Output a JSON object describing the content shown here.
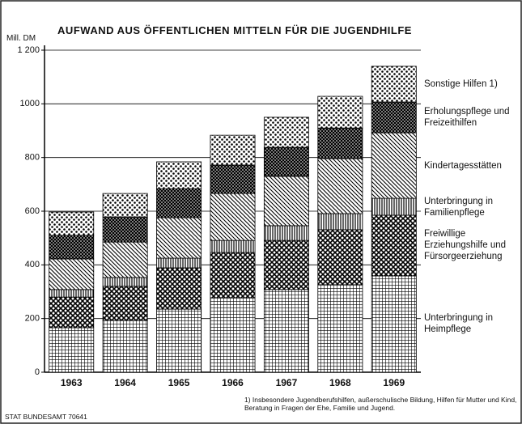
{
  "chart_data": {
    "type": "stacked_bar",
    "title": "AUFWAND AUS ÖFFENTLICHEN MITTELN FÜR DIE JUGENDHILFE",
    "y_label": "Mill. DM",
    "categories": [
      "1963",
      "1964",
      "1965",
      "1966",
      "1967",
      "1968",
      "1969"
    ],
    "series": [
      {
        "name": "Unterbringung in Heimpflege",
        "color": "#000",
        "pattern": "grid",
        "values": [
          166,
          193,
          235,
          277,
          308,
          326,
          359
        ]
      },
      {
        "name": "Freiwillige Erziehungshilfe und Fürsorgeerziehung",
        "color": "#000",
        "pattern": "crosshatch",
        "values": [
          114,
          127,
          154,
          169,
          183,
          205,
          226
        ]
      },
      {
        "name": "Unterbringung in Familienpflege",
        "color": "#000",
        "pattern": "vstripes",
        "values": [
          28,
          33,
          36,
          45,
          55,
          60,
          63
        ]
      },
      {
        "name": "Kindertagesstätten",
        "color": "#000",
        "pattern": "diagonal",
        "values": [
          114,
          132,
          151,
          175,
          184,
          205,
          244
        ]
      },
      {
        "name": "Erholungspflege und Freizeithilfen",
        "color": "#000",
        "pattern": "crosshatch-dense",
        "values": [
          88,
          94,
          108,
          106,
          108,
          114,
          115
        ]
      },
      {
        "name": "Sonstige Hilfen 1)",
        "color": "#000",
        "pattern": "dots",
        "values": [
          87,
          87,
          100,
          111,
          112,
          118,
          133
        ]
      }
    ],
    "ylim": [
      0,
      1200
    ],
    "yticks": [
      0,
      200,
      400,
      600,
      800,
      1000,
      {
        "value": 1200,
        "label": "1 200"
      }
    ],
    "grid": true,
    "footnote": "1) Insbesondere Jugendberufshilfen, außerschulische Bildung, Hilfen für Mutter und Kind, Beratung in Fragen der Ehe, Familie und Jugend.",
    "source": "STAT BUNDESAMT 70641"
  }
}
